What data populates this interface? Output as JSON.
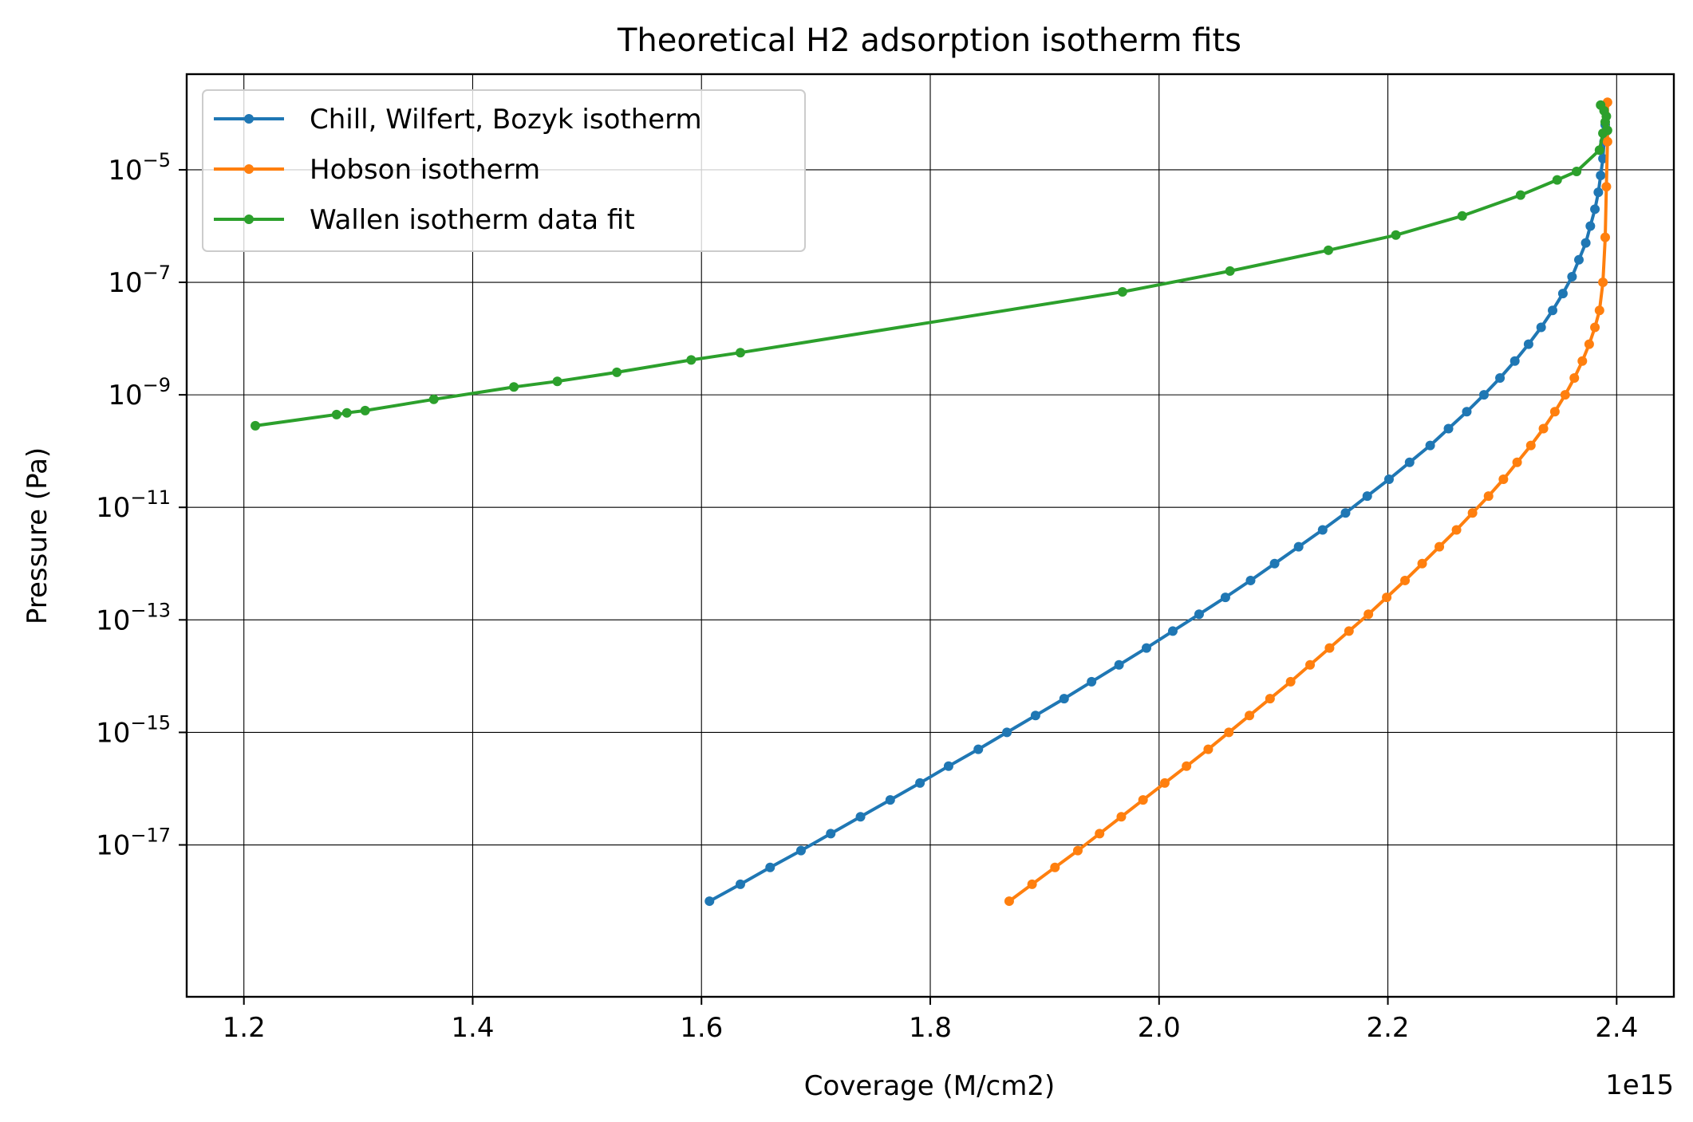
{
  "chart_data": {
    "type": "line",
    "title": "Theoretical H2 adsorption isotherm fits",
    "xlabel": "Coverage (M/cm2)",
    "ylabel": "Pressure (Pa)",
    "x_offset_label": "1e15",
    "x_scale": 1000000000000000.0,
    "y_scale": "log",
    "xlim": [
      1.15,
      2.45
    ],
    "ylim_log10": [
      -19.7,
      -3.3
    ],
    "x_ticks": [
      1.2,
      1.4,
      1.6,
      1.8,
      2.0,
      2.2,
      2.4
    ],
    "x_tick_labels": [
      "1.2",
      "1.4",
      "1.6",
      "1.8",
      "2.0",
      "2.2",
      "2.4"
    ],
    "y_ticks_log10": [
      -17,
      -15,
      -13,
      -11,
      -9,
      -7,
      -5
    ],
    "y_tick_labels": [
      "10",
      "10",
      "10",
      "10",
      "10",
      "10",
      "10"
    ],
    "y_tick_exponents": [
      "−17",
      "−15",
      "−13",
      "−11",
      "−9",
      "−7",
      "−5"
    ],
    "grid": true,
    "legend_position": "top-left",
    "series": [
      {
        "name": "Chill, Wilfert, Bozyk isotherm",
        "color": "#1f77b4",
        "x": [
          1.607,
          1.634,
          1.66,
          1.687,
          1.713,
          1.739,
          1.765,
          1.791,
          1.816,
          1.842,
          1.867,
          1.892,
          1.917,
          1.941,
          1.965,
          1.989,
          2.012,
          2.035,
          2.058,
          2.08,
          2.101,
          2.122,
          2.143,
          2.163,
          2.182,
          2.201,
          2.219,
          2.237,
          2.253,
          2.269,
          2.284,
          2.298,
          2.311,
          2.323,
          2.334,
          2.344,
          2.353,
          2.361,
          2.367,
          2.373,
          2.377,
          2.381,
          2.384,
          2.386,
          2.388,
          2.389,
          2.39
        ],
        "log10_y": [
          -18.0,
          -17.7,
          -17.4,
          -17.1,
          -16.8,
          -16.5,
          -16.2,
          -15.9,
          -15.6,
          -15.3,
          -15.0,
          -14.7,
          -14.4,
          -14.1,
          -13.8,
          -13.5,
          -13.2,
          -12.9,
          -12.6,
          -12.3,
          -12.0,
          -11.7,
          -11.4,
          -11.1,
          -10.8,
          -10.5,
          -10.2,
          -9.9,
          -9.6,
          -9.3,
          -9.0,
          -8.7,
          -8.4,
          -8.1,
          -7.8,
          -7.5,
          -7.2,
          -6.9,
          -6.6,
          -6.3,
          -6.0,
          -5.7,
          -5.4,
          -5.1,
          -4.8,
          -4.5,
          -4.2
        ]
      },
      {
        "name": "Hobson isotherm",
        "color": "#ff7f0e",
        "x": [
          1.869,
          1.889,
          1.909,
          1.929,
          1.948,
          1.967,
          1.986,
          2.005,
          2.024,
          2.043,
          2.061,
          2.079,
          2.097,
          2.115,
          2.132,
          2.149,
          2.166,
          2.183,
          2.199,
          2.215,
          2.23,
          2.245,
          2.26,
          2.274,
          2.288,
          2.301,
          2.313,
          2.325,
          2.336,
          2.346,
          2.355,
          2.363,
          2.37,
          2.376,
          2.381,
          2.385,
          2.388,
          2.39,
          2.391,
          2.392,
          2.392
        ],
        "log10_y": [
          -18.0,
          -17.7,
          -17.4,
          -17.1,
          -16.8,
          -16.5,
          -16.2,
          -15.9,
          -15.6,
          -15.3,
          -15.0,
          -14.7,
          -14.4,
          -14.1,
          -13.8,
          -13.5,
          -13.2,
          -12.9,
          -12.6,
          -12.3,
          -12.0,
          -11.7,
          -11.4,
          -11.1,
          -10.8,
          -10.5,
          -10.2,
          -9.9,
          -9.6,
          -9.3,
          -9.0,
          -8.7,
          -8.4,
          -8.1,
          -7.8,
          -7.5,
          -7.0,
          -6.2,
          -5.3,
          -4.5,
          -3.8
        ]
      },
      {
        "name": "Wallen isotherm data fit",
        "color": "#2ca02c",
        "x": [
          1.21,
          1.281,
          1.29,
          1.306,
          1.366,
          1.436,
          1.474,
          1.526,
          1.591,
          1.634,
          1.968,
          2.062,
          2.148,
          2.207,
          2.265,
          2.316,
          2.348,
          2.365,
          2.385,
          2.388,
          2.39,
          2.392,
          2.391,
          2.389,
          2.386
        ],
        "log10_y": [
          -9.55,
          -9.35,
          -9.32,
          -9.28,
          -9.08,
          -8.86,
          -8.76,
          -8.6,
          -8.38,
          -8.25,
          -7.17,
          -6.8,
          -6.43,
          -6.16,
          -5.82,
          -5.45,
          -5.18,
          -5.03,
          -4.65,
          -4.35,
          -4.15,
          -4.3,
          -4.05,
          -3.95,
          -3.85
        ]
      }
    ]
  }
}
